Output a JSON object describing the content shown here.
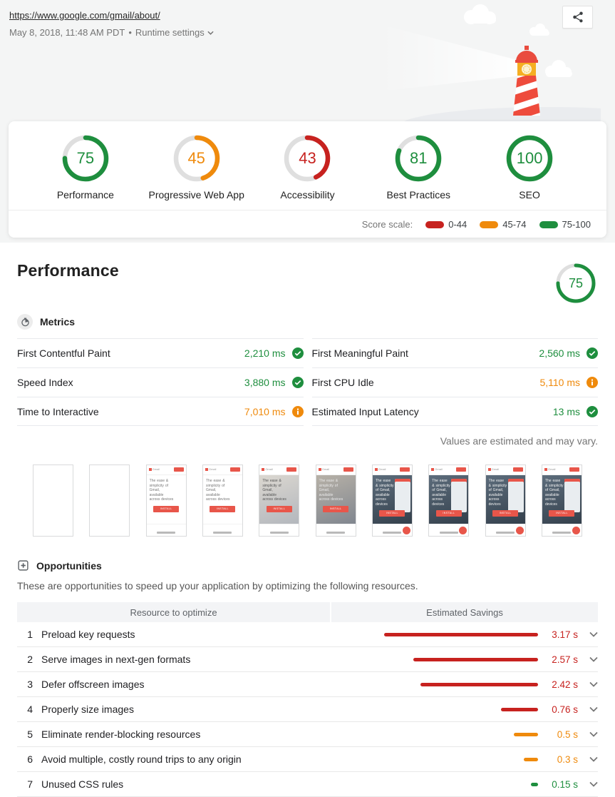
{
  "colors": {
    "pass": "#1e8e3e",
    "average": "#ef8a0c",
    "fail": "#c7221f"
  },
  "header": {
    "url": "https://www.google.com/gmail/about/",
    "timestamp": "May 8, 2018, 11:48 AM PDT",
    "separator": "•",
    "runtime_settings_label": "Runtime settings"
  },
  "scores": {
    "items": [
      {
        "label": "Performance",
        "score": 75,
        "status": "pass"
      },
      {
        "label": "Progressive Web App",
        "score": 45,
        "status": "average"
      },
      {
        "label": "Accessibility",
        "score": 43,
        "status": "fail"
      },
      {
        "label": "Best Practices",
        "score": 81,
        "status": "pass"
      },
      {
        "label": "SEO",
        "score": 100,
        "status": "pass"
      }
    ],
    "scale": {
      "label": "Score scale:",
      "ranges": [
        {
          "label": "0-44",
          "color": "#c7221f"
        },
        {
          "label": "45-74",
          "color": "#ef8a0c"
        },
        {
          "label": "75-100",
          "color": "#1e8e3e"
        }
      ]
    }
  },
  "performance": {
    "title": "Performance",
    "gauge": {
      "score": 75,
      "status": "pass"
    },
    "metrics_section_label": "Metrics",
    "metrics": [
      {
        "name": "First Contentful Paint",
        "value": "2,210 ms",
        "status": "pass"
      },
      {
        "name": "First Meaningful Paint",
        "value": "2,560 ms",
        "status": "pass"
      },
      {
        "name": "Speed Index",
        "value": "3,880 ms",
        "status": "pass"
      },
      {
        "name": "First CPU Idle",
        "value": "5,110 ms",
        "status": "average"
      },
      {
        "name": "Time to Interactive",
        "value": "7,010 ms",
        "status": "average"
      },
      {
        "name": "Estimated Input Latency",
        "value": "13 ms",
        "status": "pass"
      }
    ],
    "estimate_note": "Values are estimated and may vary.",
    "filmstrip_content": {
      "brand": "Gmail",
      "heading": "The ease & simplicity of Gmail, available across devices",
      "button": "INSTALL"
    },
    "filmstrip": [
      {
        "variant": "blank",
        "fab": false
      },
      {
        "variant": "blank",
        "fab": false
      },
      {
        "variant": "text",
        "fab": false
      },
      {
        "variant": "text",
        "fab": false
      },
      {
        "variant": "text-bg",
        "fab": false
      },
      {
        "variant": "photo-blur",
        "fab": false
      },
      {
        "variant": "photo",
        "fab": true
      },
      {
        "variant": "photo",
        "fab": true
      },
      {
        "variant": "photo",
        "fab": true
      },
      {
        "variant": "photo",
        "fab": true
      }
    ]
  },
  "opportunities": {
    "section_label": "Opportunities",
    "description": "These are opportunities to speed up your application by optimizing the following resources.",
    "columns": {
      "resource": "Resource to optimize",
      "savings": "Estimated Savings"
    },
    "rows": [
      {
        "num": "1",
        "title": "Preload key requests",
        "savings_s": 3.17,
        "savings_label": "3.17 s",
        "severity": "fail"
      },
      {
        "num": "2",
        "title": "Serve images in next-gen formats",
        "savings_s": 2.57,
        "savings_label": "2.57 s",
        "severity": "fail"
      },
      {
        "num": "3",
        "title": "Defer offscreen images",
        "savings_s": 2.42,
        "savings_label": "2.42 s",
        "severity": "fail"
      },
      {
        "num": "4",
        "title": "Properly size images",
        "savings_s": 0.76,
        "savings_label": "0.76 s",
        "severity": "fail"
      },
      {
        "num": "5",
        "title": "Eliminate render-blocking resources",
        "savings_s": 0.5,
        "savings_label": "0.5 s",
        "severity": "average"
      },
      {
        "num": "6",
        "title": "Avoid multiple, costly round trips to any origin",
        "savings_s": 0.3,
        "savings_label": "0.3 s",
        "severity": "average"
      },
      {
        "num": "7",
        "title": "Unused CSS rules",
        "savings_s": 0.15,
        "savings_label": "0.15 s",
        "severity": "pass"
      }
    ]
  }
}
